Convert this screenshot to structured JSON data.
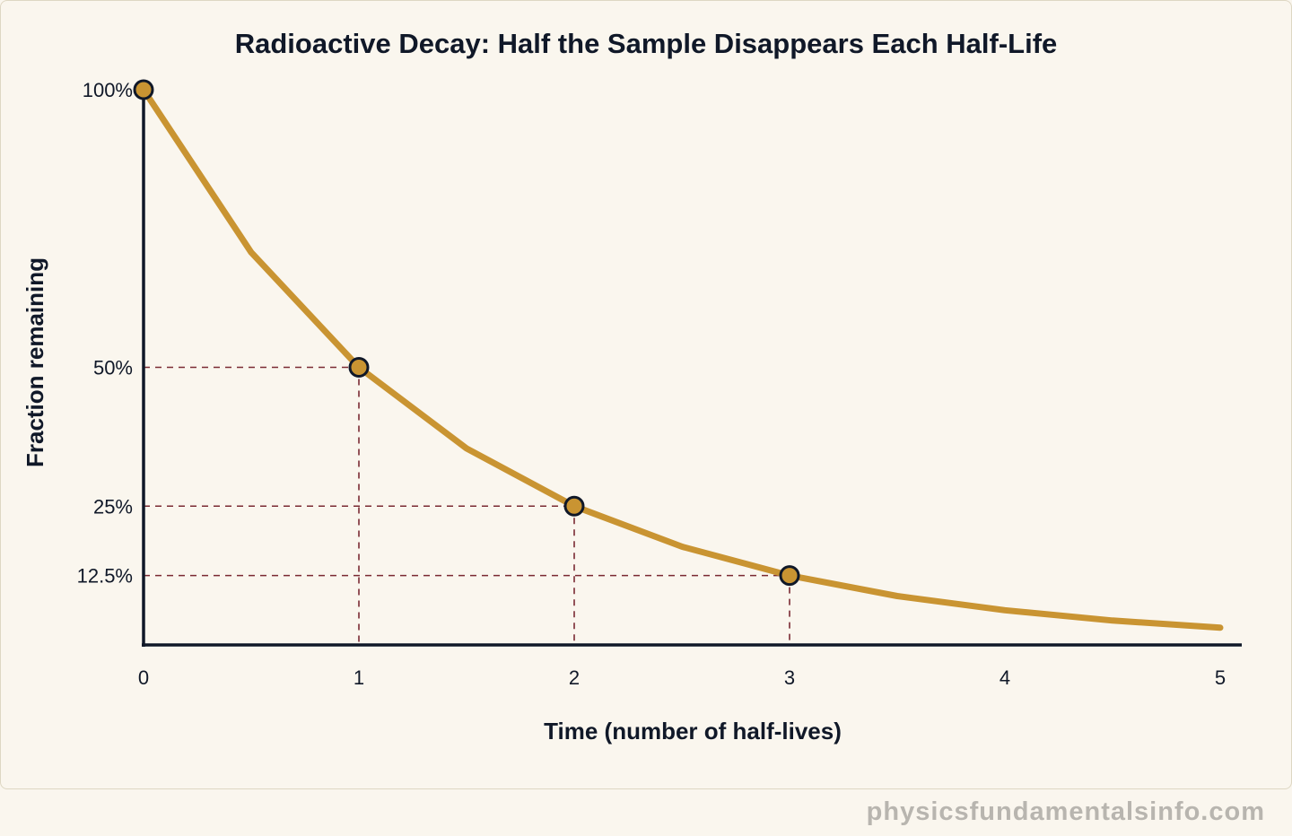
{
  "chart_data": {
    "type": "line",
    "title": "Radioactive Decay: Half the Sample Disappears Each Half-Life",
    "xlabel": "Time (number of half-lives)",
    "ylabel": "Fraction remaining",
    "xlim": [
      0,
      5
    ],
    "ylim": [
      0,
      100
    ],
    "x_ticks": [
      "0",
      "1",
      "2",
      "3",
      "4",
      "5"
    ],
    "y_ticks": [
      {
        "value": 100,
        "label": "100%"
      },
      {
        "value": 50,
        "label": "50%"
      },
      {
        "value": 25,
        "label": "25%"
      },
      {
        "value": 12.5,
        "label": "12.5%"
      }
    ],
    "series": [
      {
        "x": [
          0,
          0.5,
          1,
          1.5,
          2,
          2.5,
          3,
          3.5,
          4,
          4.5,
          5
        ],
        "y": [
          100,
          70.7,
          50,
          35.4,
          25,
          17.7,
          12.5,
          8.8,
          6.25,
          4.4,
          3.1
        ],
        "color": "#c99432"
      }
    ],
    "highlighted_points": [
      {
        "x": 0,
        "y": 100
      },
      {
        "x": 1,
        "y": 50
      },
      {
        "x": 2,
        "y": 25
      },
      {
        "x": 3,
        "y": 12.5
      }
    ],
    "guide_color": "#7a2a33",
    "grid": false,
    "legend": "none"
  },
  "watermark": "physicsfundamentalsinfo.com",
  "colors": {
    "background": "#faf6ee",
    "card_border": "#ded7c3",
    "axis": "#101828",
    "curve": "#c99432",
    "guide": "#7a2a33",
    "watermark": "#b8b5af"
  }
}
